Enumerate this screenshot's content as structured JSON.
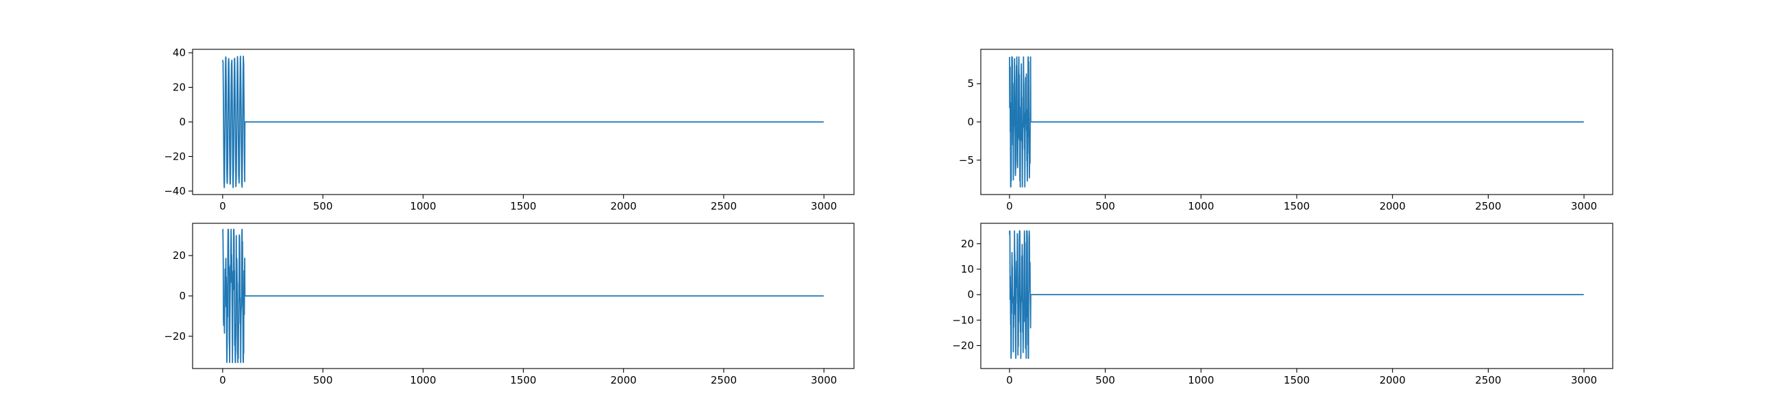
{
  "figure": {
    "background": "#ffffff",
    "line_color": "#1f77b4"
  },
  "chart_data": [
    {
      "type": "line",
      "title": "",
      "xlabel": "",
      "ylabel": "",
      "xlim": [
        -150,
        3150
      ],
      "ylim": [
        -42,
        42
      ],
      "xticks": [
        0,
        500,
        1000,
        1500,
        2000,
        2500,
        3000
      ],
      "yticks": [
        -40,
        -20,
        0,
        20,
        40
      ],
      "grid": false,
      "legend": null,
      "series": [
        {
          "color": "#1f77b4",
          "n_points": 3000,
          "burst": {
            "start": 0,
            "end": 110,
            "amplitude": 38,
            "cycles": 7.5,
            "noise": 0.08
          },
          "tail_value": 0
        }
      ]
    },
    {
      "type": "line",
      "title": "",
      "xlabel": "",
      "ylabel": "",
      "xlim": [
        -150,
        3150
      ],
      "ylim": [
        -9.5,
        9.5
      ],
      "xticks": [
        0,
        500,
        1000,
        1500,
        2000,
        2500,
        3000
      ],
      "yticks": [
        -5,
        0,
        5
      ],
      "grid": false,
      "legend": null,
      "series": [
        {
          "color": "#1f77b4",
          "n_points": 3000,
          "burst": {
            "start": 0,
            "end": 110,
            "amplitude": 8.5,
            "cycles": 9,
            "noise": 0.6
          },
          "tail_value": 0
        }
      ]
    },
    {
      "type": "line",
      "title": "",
      "xlabel": "",
      "ylabel": "",
      "xlim": [
        -150,
        3150
      ],
      "ylim": [
        -36,
        36
      ],
      "xticks": [
        0,
        500,
        1000,
        1500,
        2000,
        2500,
        3000
      ],
      "yticks": [
        -20,
        0,
        20
      ],
      "grid": false,
      "legend": null,
      "series": [
        {
          "color": "#1f77b4",
          "n_points": 3000,
          "burst": {
            "start": 0,
            "end": 110,
            "amplitude": 33,
            "cycles": 8,
            "noise": 0.55
          },
          "tail_value": 0
        }
      ]
    },
    {
      "type": "line",
      "title": "",
      "xlabel": "",
      "ylabel": "",
      "xlim": [
        -150,
        3150
      ],
      "ylim": [
        -29,
        28
      ],
      "xticks": [
        0,
        500,
        1000,
        1500,
        2000,
        2500,
        3000
      ],
      "yticks": [
        -20,
        -10,
        0,
        10,
        20
      ],
      "grid": false,
      "legend": null,
      "series": [
        {
          "color": "#1f77b4",
          "n_points": 3000,
          "burst": {
            "start": 0,
            "end": 110,
            "amplitude": 25,
            "cycles": 8.5,
            "noise": 0.6
          },
          "tail_value": 0
        }
      ]
    }
  ]
}
